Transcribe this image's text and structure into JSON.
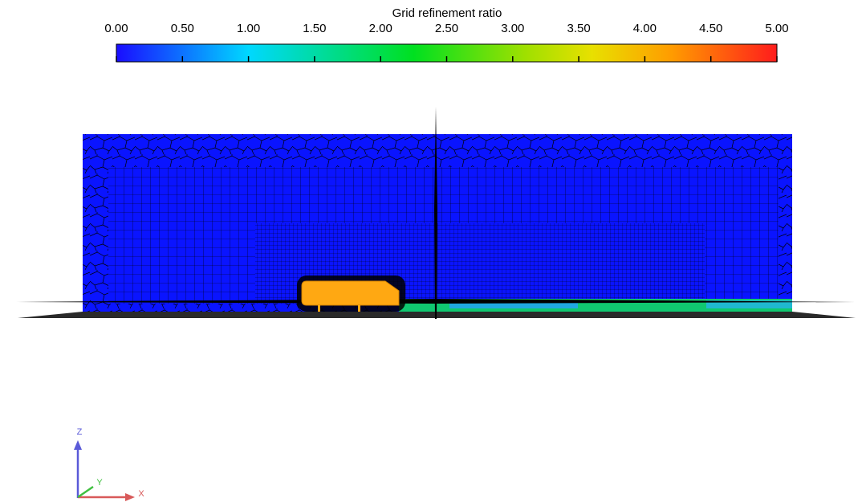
{
  "colorbar": {
    "title": "Grid refinement ratio",
    "range": [
      0,
      5
    ],
    "ticks": [
      {
        "value": 0,
        "label": "0.00"
      },
      {
        "value": 0.5,
        "label": "0.50"
      },
      {
        "value": 1,
        "label": "1.00"
      },
      {
        "value": 1.5,
        "label": "1.50"
      },
      {
        "value": 2,
        "label": "2.00"
      },
      {
        "value": 2.5,
        "label": "2.50"
      },
      {
        "value": 3,
        "label": "3.00"
      },
      {
        "value": 3.5,
        "label": "3.50"
      },
      {
        "value": 4,
        "label": "4.00"
      },
      {
        "value": 4.5,
        "label": "4.50"
      },
      {
        "value": 5,
        "label": "5.00"
      }
    ]
  },
  "axes": {
    "z": "Z",
    "y": "Y",
    "x": "X"
  }
}
